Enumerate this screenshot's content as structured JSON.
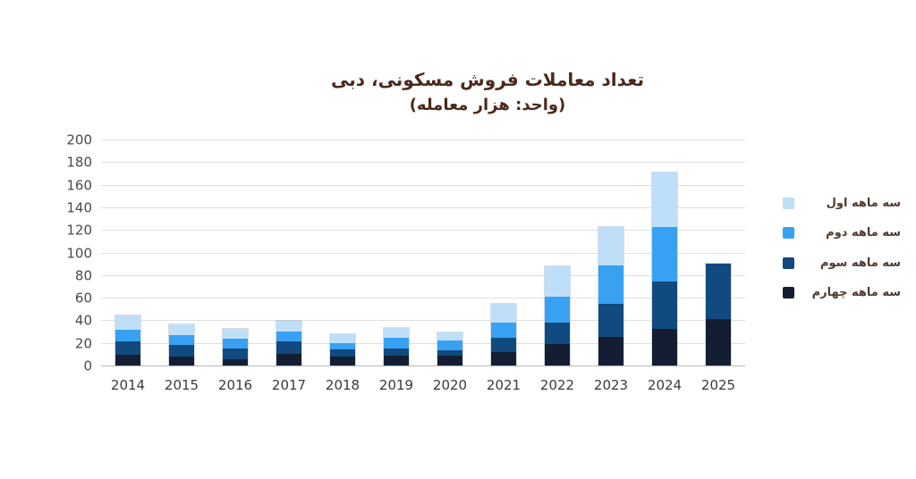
{
  "title": {
    "line1": "تعداد معاملات فروش مسکونی، دبی",
    "line2": "(واحد: هزار معامله)",
    "color": "#4c281c"
  },
  "chart_data": {
    "type": "bar",
    "stacked": true,
    "title": "تعداد معاملات فروش مسکونی، دبی (واحد: هزار معامله)",
    "categories": [
      "2014",
      "2015",
      "2016",
      "2017",
      "2018",
      "2019",
      "2020",
      "2021",
      "2022",
      "2023",
      "2024",
      "2025"
    ],
    "series": [
      {
        "key": "q4",
        "name": "سه ماهه چهارم",
        "color": "#141e33",
        "values": [
          10,
          8,
          6,
          11,
          8,
          9,
          9,
          12,
          19,
          26,
          33,
          42
        ]
      },
      {
        "key": "q3",
        "name": "سه ماهه سوم",
        "color": "#114a7e",
        "values": [
          12,
          11,
          10,
          11,
          7,
          7,
          5,
          13,
          20,
          29,
          42,
          50
        ]
      },
      {
        "key": "q2",
        "name": "سه ماهه دوم",
        "color": "#38a1f3",
        "values": [
          11,
          9,
          9,
          9,
          6,
          10,
          9,
          14,
          23,
          35,
          49,
          0
        ]
      },
      {
        "key": "q1",
        "name": "سه ماهه اول",
        "color": "#bfdff8",
        "values": [
          13,
          10,
          9,
          10,
          8,
          9,
          8,
          17,
          27,
          34,
          48,
          0
        ]
      }
    ],
    "series_note_stack_order": "bottom-to-top",
    "legend_order_keys": [
      "q1",
      "q2",
      "q3",
      "q4"
    ],
    "legend_position": "right",
    "ylim": [
      0,
      200
    ],
    "ytick_step": 20,
    "grid": true,
    "xlabel": "",
    "ylabel": ""
  }
}
